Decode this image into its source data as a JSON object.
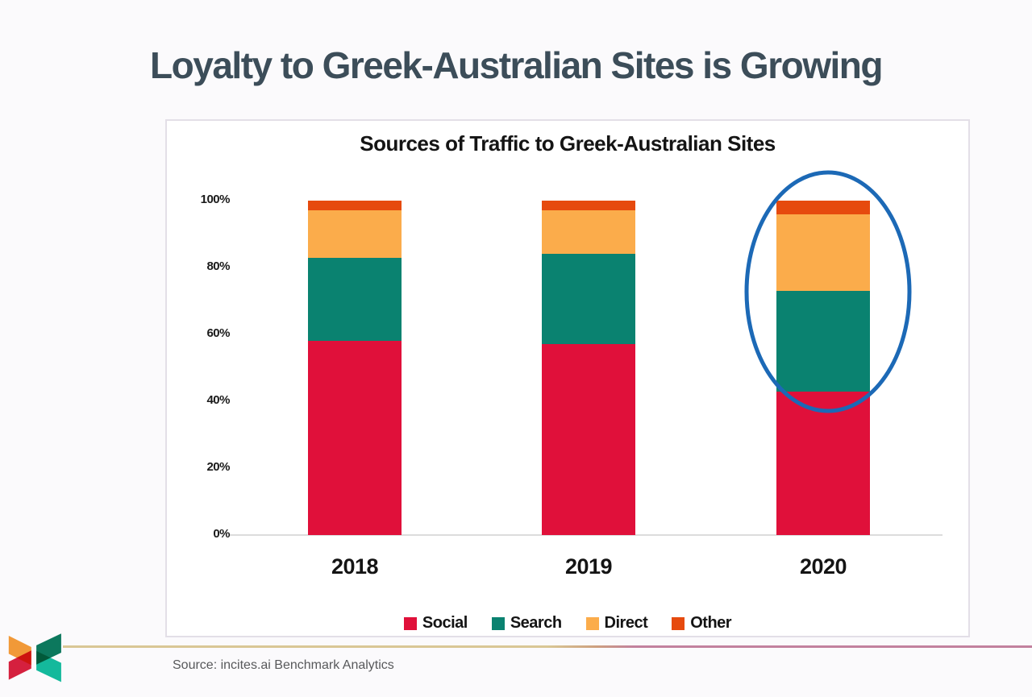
{
  "slide": {
    "title": "Loyalty to Greek-Australian Sites is Growing",
    "source": "Source: incites.ai Benchmark Analytics"
  },
  "chart_data": {
    "type": "bar",
    "subtype": "stacked-percentage",
    "title": "Sources of Traffic to Greek-Australian Sites",
    "categories": [
      "2018",
      "2019",
      "2020"
    ],
    "series": [
      {
        "name": "Social",
        "color": "#e0103a",
        "values": [
          58,
          57,
          43
        ]
      },
      {
        "name": "Search",
        "color": "#0a8270",
        "values": [
          25,
          27,
          30
        ]
      },
      {
        "name": "Direct",
        "color": "#fbac4b",
        "values": [
          14,
          13,
          23
        ]
      },
      {
        "name": "Other",
        "color": "#e64a0e",
        "values": [
          3,
          3,
          4
        ]
      }
    ],
    "y_ticks": [
      "0%",
      "20%",
      "40%",
      "60%",
      "80%",
      "100%"
    ],
    "ylim": [
      0,
      100
    ],
    "grid": false,
    "legend_position": "bottom",
    "annotation": {
      "type": "ellipse",
      "target_category": "2020",
      "color": "#1c69b6"
    }
  },
  "colors": {
    "background": "#fbfafc",
    "panel_border": "#e3dfe7",
    "title_text": "#3c4d59",
    "axis_line": "#dcdcdc",
    "footer_line_left": "#d9c795",
    "footer_line_right": "#c2819e",
    "source_text": "#58595b"
  },
  "logo": {
    "name": "incites-butterfly-logo",
    "colors": [
      "#f59c38",
      "#d9203e",
      "#0c7a5e",
      "#14bd9e"
    ]
  }
}
